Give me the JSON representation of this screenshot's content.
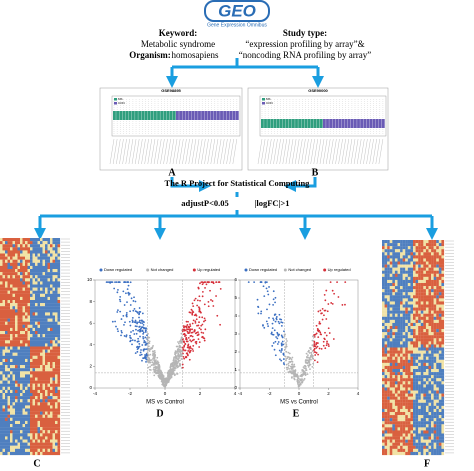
{
  "header": {
    "logo": "GEO",
    "subtitle": "Gene Expression Omnibus"
  },
  "query": {
    "keyword_label": "Keyword:",
    "keyword": "Metabolic syndrome",
    "organism_label": "Organism:",
    "organism": "homosapiens",
    "study_type_label": "Study type:",
    "study_type_1": "“expression profiling by array”&",
    "study_type_2": "“noncoding RNA profiling by array”"
  },
  "datasets": [
    {
      "id": "GSE98895",
      "panel": "A",
      "legend": [
        "MS",
        "CON"
      ]
    },
    {
      "id": "GSE90000",
      "panel": "B",
      "legend": [
        "MS",
        "CON"
      ]
    }
  ],
  "tool": "The R Project for Statistical Computing",
  "filters": [
    "adjustP<0.05",
    "|logFC|>1"
  ],
  "volcanoes": [
    {
      "panel": "D",
      "legend": [
        "Down regulated",
        "Not changed",
        "Up regulated"
      ],
      "xlabel": "MS vs Control",
      "xticks": [
        -4,
        -2,
        0,
        2,
        4
      ],
      "yticks": [
        0,
        2,
        4,
        6,
        8,
        10
      ]
    },
    {
      "panel": "E",
      "legend": [
        "Down regulated",
        "Not changed",
        "Up regulated"
      ],
      "xlabel": "MS vs Control",
      "xticks": [
        -4,
        -2,
        0,
        2,
        4
      ],
      "yticks": [
        0,
        1,
        2,
        3,
        4,
        5,
        6
      ]
    }
  ],
  "heatmaps": [
    {
      "panel": "C"
    },
    {
      "panel": "F"
    }
  ]
}
